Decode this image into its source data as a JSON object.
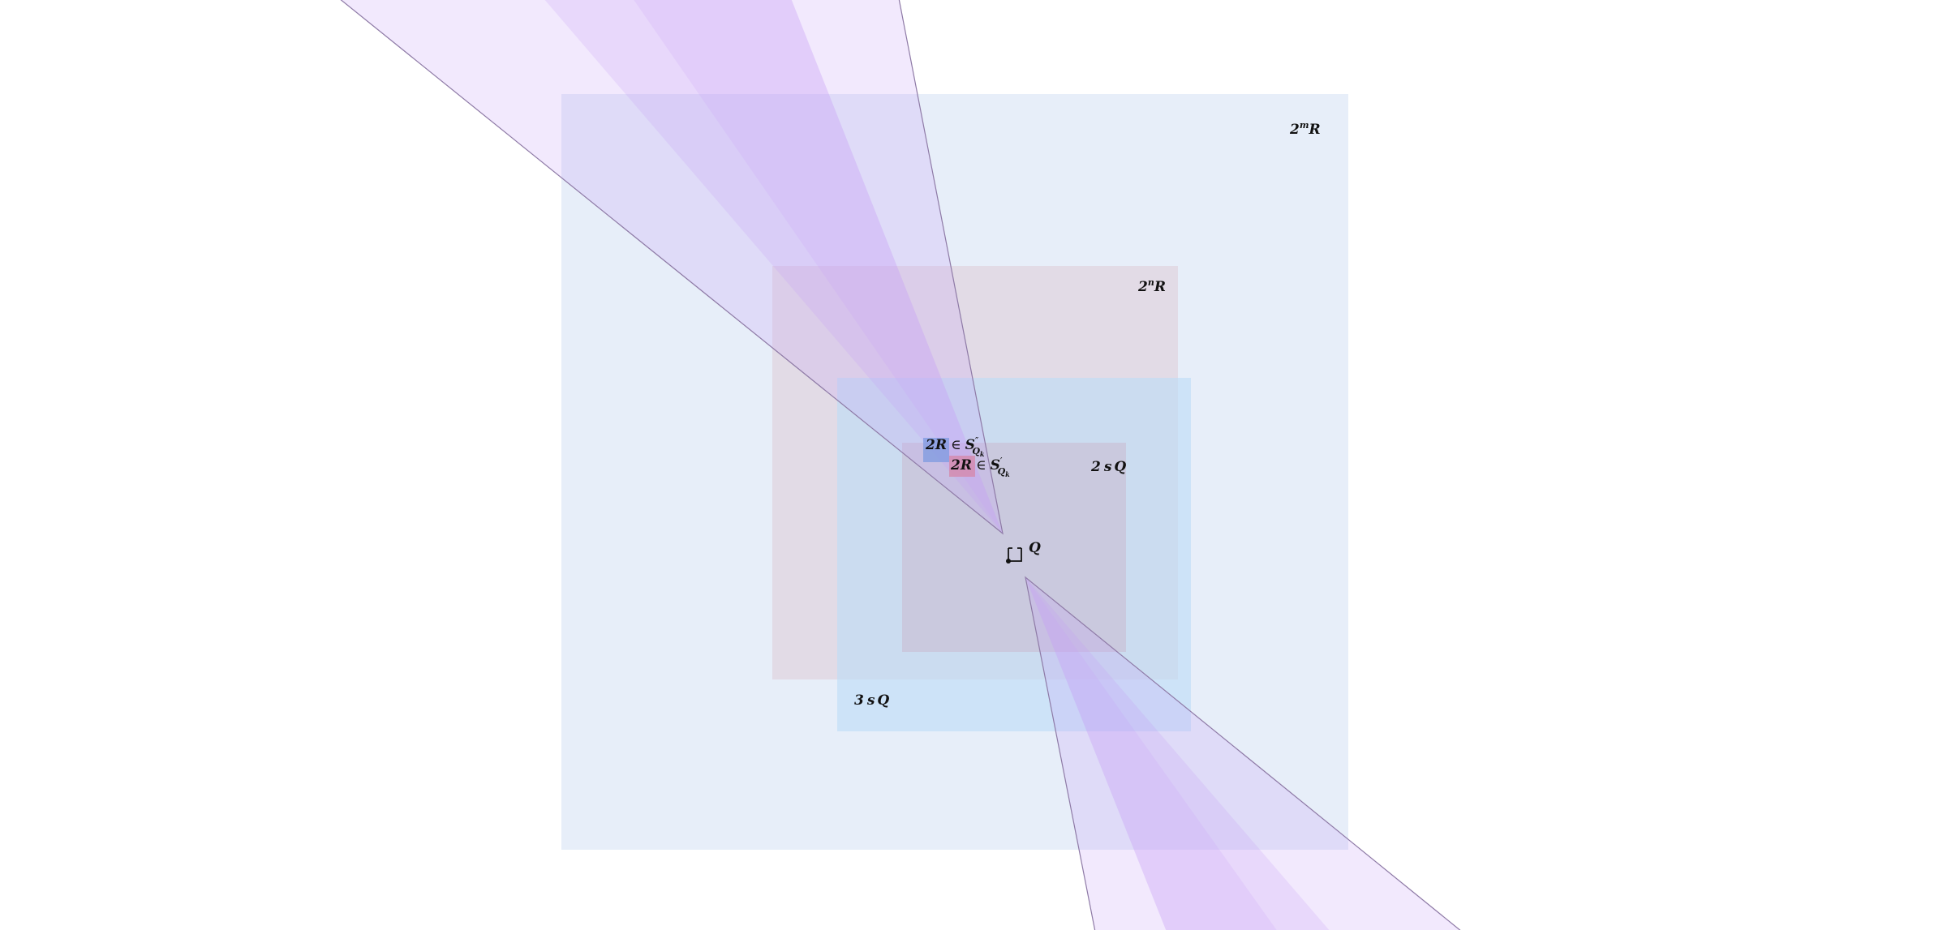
{
  "diagram": {
    "labels": {
      "big_square": {
        "base": "2",
        "sup": "m",
        "tail": "R"
      },
      "mid_square": {
        "base": "2",
        "sup": "n",
        "tail": "R"
      },
      "three_s_q": {
        "coef": "3",
        "s": "s",
        "q": "Q"
      },
      "two_s_q": {
        "coef": "2",
        "s": "s",
        "q": "Q"
      },
      "q": {
        "text": "Q"
      },
      "r_double_prime": {
        "lhs": "2R",
        "in": "∈",
        "set": "S",
        "sup": "″",
        "sub": "Q",
        "subsub": "k"
      },
      "r_prime": {
        "lhs": "2R",
        "in": "∈",
        "set": "S",
        "sup": "′",
        "sub": "Q",
        "subsub": "k"
      }
    },
    "colors": {
      "big_square_fill": "#e7eef9",
      "mid_square_fill": "#e2dbe6",
      "three_s_q_fill": "#bcdcf7",
      "two_s_q_fill": "#cbb9d0",
      "cone_fill": "#c69af7",
      "cone_stroke": "#8e7aa6",
      "small_blue_square": "#7d9ae0",
      "small_pink_square": "#d585a8",
      "label_text": "#111111"
    }
  }
}
